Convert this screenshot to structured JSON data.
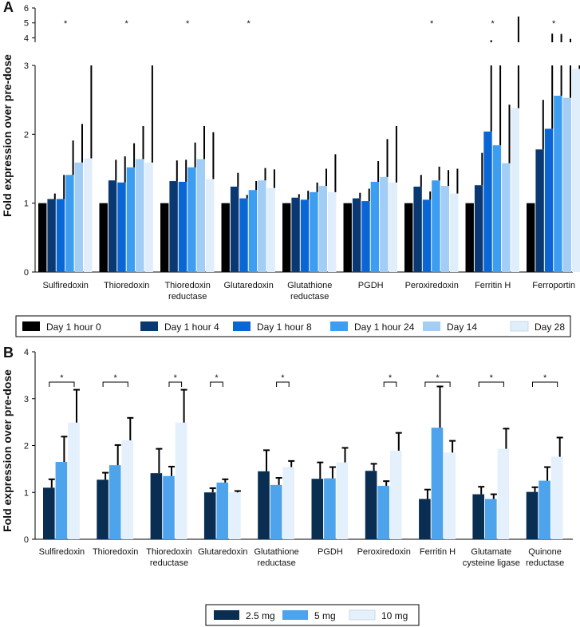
{
  "chart_data": [
    {
      "panel_label": "A",
      "type": "bar",
      "ylabel": "Fold expression over pre-dose",
      "lower_ticks": [
        "0",
        "1",
        "2",
        "3"
      ],
      "upper_ticks": [
        "4",
        "5",
        "6"
      ],
      "ylim_lower": [
        0,
        3
      ],
      "ylim_upper": [
        3.7,
        6
      ],
      "categories": [
        [
          "Sulfiredoxin"
        ],
        [
          "Thioredoxin"
        ],
        [
          "Thioredoxin",
          "reductase"
        ],
        [
          "Glutaredoxin"
        ],
        [
          "Glutathione",
          "reductase"
        ],
        [
          "PGDH"
        ],
        [
          "Peroxiredoxin"
        ],
        [
          "Ferritin H"
        ],
        [
          "Ferroportin"
        ]
      ],
      "significance": [
        "*",
        "*",
        "*",
        "*",
        "",
        "",
        "*",
        "*",
        "*"
      ],
      "colors": [
        "#000000",
        "#0a3872",
        "#0a66d4",
        "#3d9df0",
        "#a2cdf5",
        "#e0eefc"
      ],
      "series": [
        {
          "name": "Day 1 hour 0",
          "values": [
            1.0,
            1.0,
            1.0,
            1.0,
            1.0,
            1.0,
            1.0,
            1.0,
            1.0
          ],
          "err": [
            0,
            0,
            0,
            0,
            0,
            0,
            0,
            0,
            0
          ]
        },
        {
          "name": "Day 1 hour 4",
          "values": [
            1.06,
            1.33,
            1.32,
            1.24,
            1.08,
            1.07,
            1.24,
            1.26,
            1.78
          ],
          "err": [
            0.08,
            0.3,
            0.3,
            0.2,
            0.05,
            0.08,
            0.17,
            0.47,
            0.72
          ]
        },
        {
          "name": "Day 1 hour 8",
          "values": [
            1.06,
            1.3,
            1.31,
            1.07,
            1.05,
            1.03,
            1.05,
            2.04,
            2.08
          ],
          "err": [
            0.35,
            0.38,
            0.32,
            0.05,
            0.13,
            0.18,
            0.12,
            1.8,
            2.2
          ]
        },
        {
          "name": "Day 1 hour 24",
          "values": [
            1.41,
            1.52,
            1.52,
            1.19,
            1.16,
            1.31,
            1.33,
            1.84,
            2.56
          ],
          "err": [
            0.5,
            0.35,
            0.36,
            0.13,
            0.14,
            0.3,
            0.2,
            1.5,
            1.7
          ]
        },
        {
          "name": "Day 14",
          "values": [
            1.59,
            1.64,
            1.64,
            1.33,
            1.25,
            1.38,
            1.25,
            1.58,
            2.53
          ],
          "err": [
            0.56,
            0.48,
            0.48,
            0.18,
            0.25,
            0.55,
            0.23,
            0.85,
            1.4
          ]
        },
        {
          "name": "Day 28",
          "values": [
            1.65,
            1.59,
            1.35,
            1.22,
            1.16,
            1.3,
            1.14,
            2.38,
            2.95
          ],
          "err": [
            1.8,
            2.0,
            0.68,
            0.27,
            0.55,
            0.82,
            0.36,
            3.05,
            0.1
          ]
        }
      ]
    },
    {
      "panel_label": "B",
      "type": "bar",
      "ylabel": "Fold expression over pre-dose",
      "ticks": [
        "0",
        "1",
        "2",
        "3",
        "4"
      ],
      "ylim": [
        0,
        4
      ],
      "categories": [
        [
          "Sulfiredoxin"
        ],
        [
          "Thioredoxin"
        ],
        [
          "Thioredoxin",
          "reductase"
        ],
        [
          "Glutaredoxin"
        ],
        [
          "Glutathione",
          "reductase"
        ],
        [
          "PGDH"
        ],
        [
          "Peroxiredoxin"
        ],
        [
          "Ferritin H"
        ],
        [
          "Glutamate",
          "cysteine ligase"
        ],
        [
          "Quinone",
          "reductase"
        ]
      ],
      "significance": [
        {
          "label": "*",
          "from": 0,
          "to": 2
        },
        {
          "label": "*",
          "from": 0,
          "to": 2
        },
        {
          "label": "*",
          "from": 1,
          "to": 2
        },
        {
          "label": "*",
          "from": 0,
          "to": 1
        },
        {
          "label": "*",
          "from": 1,
          "to": 2
        },
        null,
        {
          "label": "*",
          "from": 1,
          "to": 2
        },
        {
          "label": "*",
          "from": 0,
          "to": 2
        },
        {
          "label": "*",
          "from": 0,
          "to": 2
        },
        {
          "label": "*",
          "from": 0,
          "to": 2
        }
      ],
      "colors": [
        "#0a2d52",
        "#4da3ec",
        "#e4f0fb"
      ],
      "series": [
        {
          "name": "2.5 mg",
          "values": [
            1.1,
            1.27,
            1.41,
            1.0,
            1.45,
            1.29,
            1.46,
            0.86,
            0.96,
            1.01
          ],
          "err": [
            0.18,
            0.15,
            0.52,
            0.09,
            0.45,
            0.35,
            0.15,
            0.2,
            0.16,
            0.1
          ]
        },
        {
          "name": "5 mg",
          "values": [
            1.65,
            1.58,
            1.35,
            1.21,
            1.16,
            1.3,
            1.14,
            2.38,
            0.86,
            1.25
          ],
          "err": [
            0.54,
            0.43,
            0.2,
            0.07,
            0.15,
            0.24,
            0.1,
            0.88,
            0.1,
            0.29
          ]
        },
        {
          "name": "10 mg",
          "values": [
            2.49,
            2.11,
            2.49,
            1.0,
            1.54,
            1.64,
            1.89,
            1.85,
            1.93,
            1.76
          ],
          "err": [
            0.7,
            0.48,
            0.7,
            0.03,
            0.13,
            0.31,
            0.38,
            0.25,
            0.43,
            0.41
          ]
        }
      ]
    }
  ]
}
